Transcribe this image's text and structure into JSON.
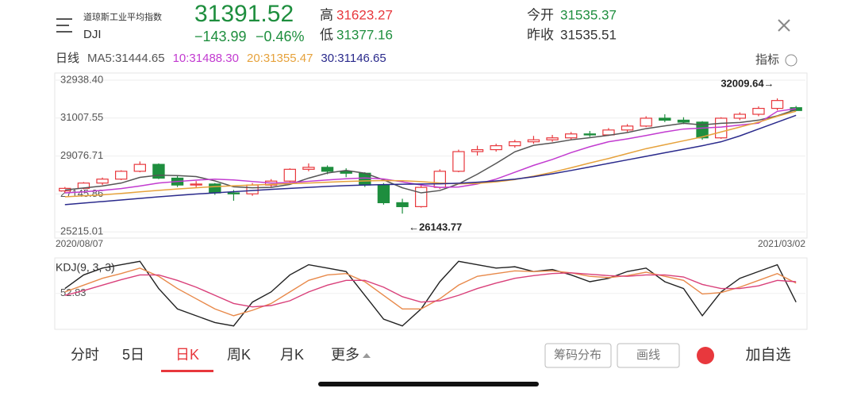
{
  "header": {
    "index_name": "道琼斯工业平均指数",
    "code": "DJI",
    "price": "31391.52",
    "change": "−143.99",
    "change_pct": "−0.46%",
    "high_label": "高",
    "high": "31623.27",
    "low_label": "低",
    "low": "31377.16",
    "open_label": "今开",
    "open": "31535.37",
    "prev_close_label": "昨收",
    "prev_close": "31535.51"
  },
  "legend_row": {
    "period": "日线",
    "indicator_button": "指标"
  },
  "chart_data": [
    {
      "type": "candlestick",
      "up_color": "#e8383d",
      "down_color": "#1e8e3e",
      "categories": [
        "2020/08/07",
        null,
        null,
        null,
        null,
        null,
        null,
        null,
        null,
        null,
        null,
        null,
        null,
        null,
        null,
        null,
        null,
        null,
        null,
        null,
        null,
        null,
        null,
        null,
        null,
        null,
        null,
        null,
        null,
        null,
        null,
        null,
        null,
        null,
        null,
        null,
        null,
        null,
        null,
        "2021/03/02"
      ],
      "open": [
        27300,
        27430,
        27700,
        27900,
        28300,
        28650,
        27950,
        27600,
        27650,
        27200,
        27150,
        27600,
        27800,
        28400,
        28500,
        28300,
        28200,
        27600,
        26700,
        26500,
        27480,
        28300,
        29300,
        29400,
        29600,
        29800,
        29900,
        30000,
        30200,
        30150,
        30400,
        30600,
        31000,
        30900,
        30800,
        30000,
        31000,
        31200,
        31500,
        31535.37
      ],
      "high": [
        27500,
        27750,
        27980,
        28350,
        28800,
        28700,
        28100,
        27800,
        27700,
        27350,
        27700,
        27900,
        28450,
        28700,
        28600,
        28450,
        28250,
        27700,
        26900,
        27600,
        28400,
        29400,
        29600,
        29700,
        29900,
        30100,
        30150,
        30300,
        30350,
        30500,
        30700,
        31100,
        31200,
        31050,
        30850,
        31050,
        31300,
        31600,
        32009.64,
        31623.27
      ],
      "low": [
        27200,
        27380,
        27600,
        27850,
        28250,
        27900,
        27500,
        27450,
        27100,
        26800,
        27050,
        27500,
        27750,
        28300,
        28150,
        28000,
        27500,
        26600,
        26143.77,
        26450,
        27400,
        28250,
        29100,
        29300,
        29500,
        29700,
        29800,
        29900,
        30050,
        30100,
        30300,
        30550,
        30800,
        30700,
        29900,
        29950,
        30900,
        31100,
        31400,
        31377.16
      ],
      "close": [
        27430,
        27700,
        27900,
        28300,
        28650,
        27950,
        27600,
        27650,
        27200,
        27150,
        27600,
        27800,
        28400,
        28500,
        28300,
        28200,
        27600,
        26700,
        26500,
        27480,
        28300,
        29300,
        29400,
        29600,
        29800,
        29900,
        30000,
        30200,
        30150,
        30400,
        30600,
        31000,
        30900,
        30800,
        30000,
        31000,
        31200,
        31500,
        31900,
        31391.52
      ],
      "series": [
        {
          "name": "MA5:31444.65",
          "color": "#555555",
          "values": [
            27350,
            27450,
            27550,
            27700,
            27990,
            28100,
            28080,
            28030,
            27810,
            27510,
            27460,
            27480,
            27630,
            27950,
            28210,
            28340,
            28200,
            27860,
            27460,
            27200,
            27320,
            27660,
            28150,
            28700,
            29290,
            29620,
            29740,
            29900,
            30010,
            30130,
            30270,
            30470,
            30610,
            30740,
            30660,
            30740,
            30780,
            30900,
            31120,
            31444.65
          ]
        },
        {
          "name": "10:31488.30",
          "color": "#c23bd0",
          "values": [
            27200,
            27250,
            27330,
            27420,
            27550,
            27700,
            27780,
            27850,
            27900,
            27860,
            27780,
            27700,
            27720,
            27790,
            27860,
            27920,
            27960,
            27910,
            27760,
            27600,
            27480,
            27500,
            27650,
            27900,
            28250,
            28600,
            28900,
            29250,
            29550,
            29800,
            29950,
            30120,
            30300,
            30450,
            30500,
            30550,
            30650,
            30750,
            31350,
            31488.3
          ]
        },
        {
          "name": "20:31355.47",
          "color": "#e6a23c",
          "values": [
            27000,
            27050,
            27100,
            27170,
            27250,
            27330,
            27400,
            27460,
            27520,
            27560,
            27600,
            27630,
            27670,
            27700,
            27740,
            27780,
            27810,
            27830,
            27820,
            27770,
            27700,
            27660,
            27680,
            27760,
            27880,
            28050,
            28250,
            28480,
            28720,
            28950,
            29200,
            29450,
            29650,
            29850,
            30050,
            30300,
            30550,
            30800,
            31100,
            31355.47
          ]
        },
        {
          "name": "30:31146.65",
          "color": "#2a2a8c",
          "values": [
            26600,
            26680,
            26760,
            26840,
            26920,
            27000,
            27070,
            27140,
            27200,
            27260,
            27320,
            27380,
            27430,
            27480,
            27530,
            27570,
            27600,
            27620,
            27640,
            27650,
            27660,
            27690,
            27740,
            27810,
            27900,
            28020,
            28170,
            28340,
            28520,
            28700,
            28880,
            29060,
            29240,
            29420,
            29600,
            29800,
            30100,
            30450,
            30800,
            31146.65
          ]
        }
      ],
      "ylim": [
        24900,
        33300
      ],
      "yticks": [
        {
          "value": 32938.4,
          "label": "32938.40"
        },
        {
          "value": 31007.55,
          "label": "31007.55"
        },
        {
          "value": 29076.71,
          "label": "29076.71"
        },
        {
          "value": 27145.86,
          "label": "27145.86"
        },
        {
          "value": 25215.01,
          "label": "25215.01"
        }
      ],
      "grid": true,
      "annotations": [
        {
          "text": "32009.64→",
          "value": 32009.64,
          "side": "left"
        },
        {
          "text": "←26143.77",
          "value": 26143.77,
          "side": "right"
        }
      ]
    },
    {
      "type": "line",
      "title": "KDJ(9, 3, 3)",
      "series": [
        {
          "name": "J",
          "color": "#222222",
          "values": [
            60,
            80,
            90,
            95,
            100,
            60,
            30,
            20,
            10,
            5,
            40,
            55,
            80,
            95,
            90,
            85,
            50,
            15,
            5,
            30,
            70,
            100,
            95,
            90,
            92,
            85,
            88,
            80,
            70,
            75,
            85,
            90,
            70,
            60,
            20,
            55,
            75,
            85,
            95,
            40
          ]
        },
        {
          "name": "K",
          "color": "#e8894a",
          "values": [
            55,
            65,
            75,
            82,
            90,
            78,
            60,
            45,
            30,
            20,
            28,
            38,
            55,
            72,
            80,
            82,
            70,
            50,
            30,
            30,
            45,
            65,
            78,
            82,
            86,
            85,
            86,
            83,
            78,
            76,
            79,
            84,
            78,
            72,
            52,
            54,
            62,
            72,
            82,
            68
          ]
        },
        {
          "name": "D",
          "color": "#d9407a",
          "values": [
            50,
            57,
            65,
            73,
            80,
            80,
            72,
            62,
            50,
            38,
            33,
            35,
            42,
            55,
            65,
            72,
            72,
            62,
            48,
            40,
            42,
            50,
            60,
            68,
            75,
            79,
            82,
            83,
            81,
            79,
            78,
            80,
            80,
            77,
            66,
            60,
            60,
            64,
            72,
            70
          ]
        }
      ],
      "ylim": [
        0,
        105
      ],
      "yticks": [
        52.83
      ]
    }
  ],
  "tabs": [
    "分时",
    "5日",
    "日K",
    "周K",
    "月K",
    "更多"
  ],
  "buttons": {
    "chips": "筹码分布",
    "draw": "画线",
    "add": "加自选"
  }
}
